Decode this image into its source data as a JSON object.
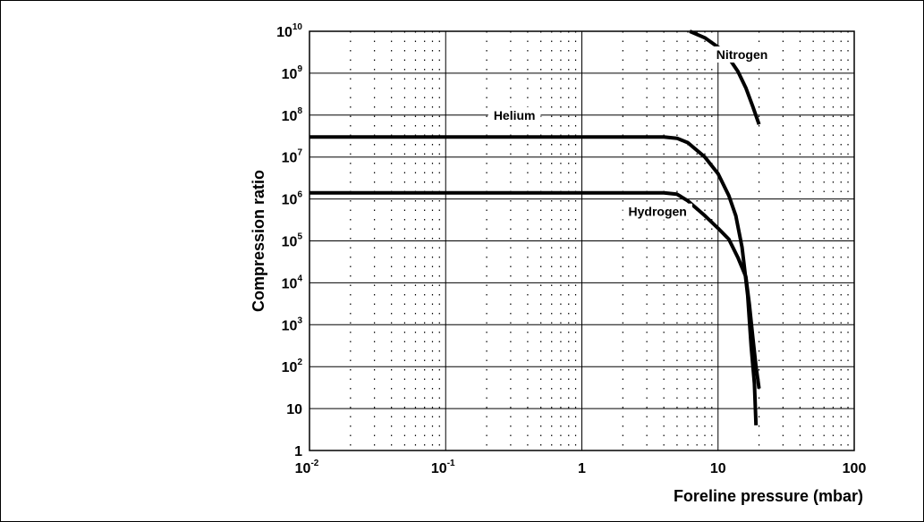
{
  "chart_data": {
    "type": "line",
    "xlabel": "Foreline pressure (mbar)",
    "ylabel": "Compression ratio",
    "x_scale": "log",
    "y_scale": "log",
    "xlim": [
      0.01,
      100
    ],
    "ylim": [
      1,
      10000000000
    ],
    "x_ticks": [
      {
        "value": 0.01,
        "base": "10",
        "exp": "-2"
      },
      {
        "value": 0.1,
        "base": "10",
        "exp": "-1"
      },
      {
        "value": 1,
        "base": "1",
        "exp": ""
      },
      {
        "value": 10,
        "base": "10",
        "exp": ""
      },
      {
        "value": 100,
        "base": "100",
        "exp": ""
      }
    ],
    "y_ticks": [
      {
        "value": 1,
        "base": "1",
        "exp": ""
      },
      {
        "value": 10,
        "base": "10",
        "exp": ""
      },
      {
        "value": 100,
        "base": "10",
        "exp": "2"
      },
      {
        "value": 1000,
        "base": "10",
        "exp": "3"
      },
      {
        "value": 10000,
        "base": "10",
        "exp": "4"
      },
      {
        "value": 100000,
        "base": "10",
        "exp": "5"
      },
      {
        "value": 1000000,
        "base": "10",
        "exp": "6"
      },
      {
        "value": 10000000,
        "base": "10",
        "exp": "7"
      },
      {
        "value": 100000000,
        "base": "10",
        "exp": "8"
      },
      {
        "value": 1000000000,
        "base": "10",
        "exp": "9"
      },
      {
        "value": 10000000000,
        "base": "10",
        "exp": "10"
      }
    ],
    "grid": true,
    "minor_grid": "dotted",
    "line_color": "#000000",
    "series": [
      {
        "name": "Nitrogen",
        "x": [
          6.2,
          8,
          10,
          12,
          14,
          16,
          18,
          20
        ],
        "y": [
          10000000000,
          7000000000,
          4200000000,
          2300000000,
          1100000000,
          450000000,
          160000000,
          60000000
        ]
      },
      {
        "name": "Helium",
        "x": [
          0.01,
          0.1,
          1,
          4,
          5,
          6,
          8,
          10,
          12,
          13.5,
          15,
          16.5,
          17.5,
          18.5,
          19
        ],
        "y": [
          30000000,
          30000000,
          30000000,
          30000000,
          28000000,
          22000000,
          10000000,
          4000000,
          1200000,
          400000,
          70000,
          5000,
          300,
          40,
          4
        ]
      },
      {
        "name": "Hydrogen",
        "x": [
          0.01,
          0.1,
          1,
          4,
          5,
          6,
          8,
          10,
          12,
          14,
          16,
          17,
          18,
          19,
          20
        ],
        "y": [
          1400000,
          1400000,
          1400000,
          1400000,
          1300000,
          900000,
          400000,
          200000,
          110000,
          40000,
          14000,
          3000,
          500,
          100,
          30
        ]
      }
    ]
  }
}
